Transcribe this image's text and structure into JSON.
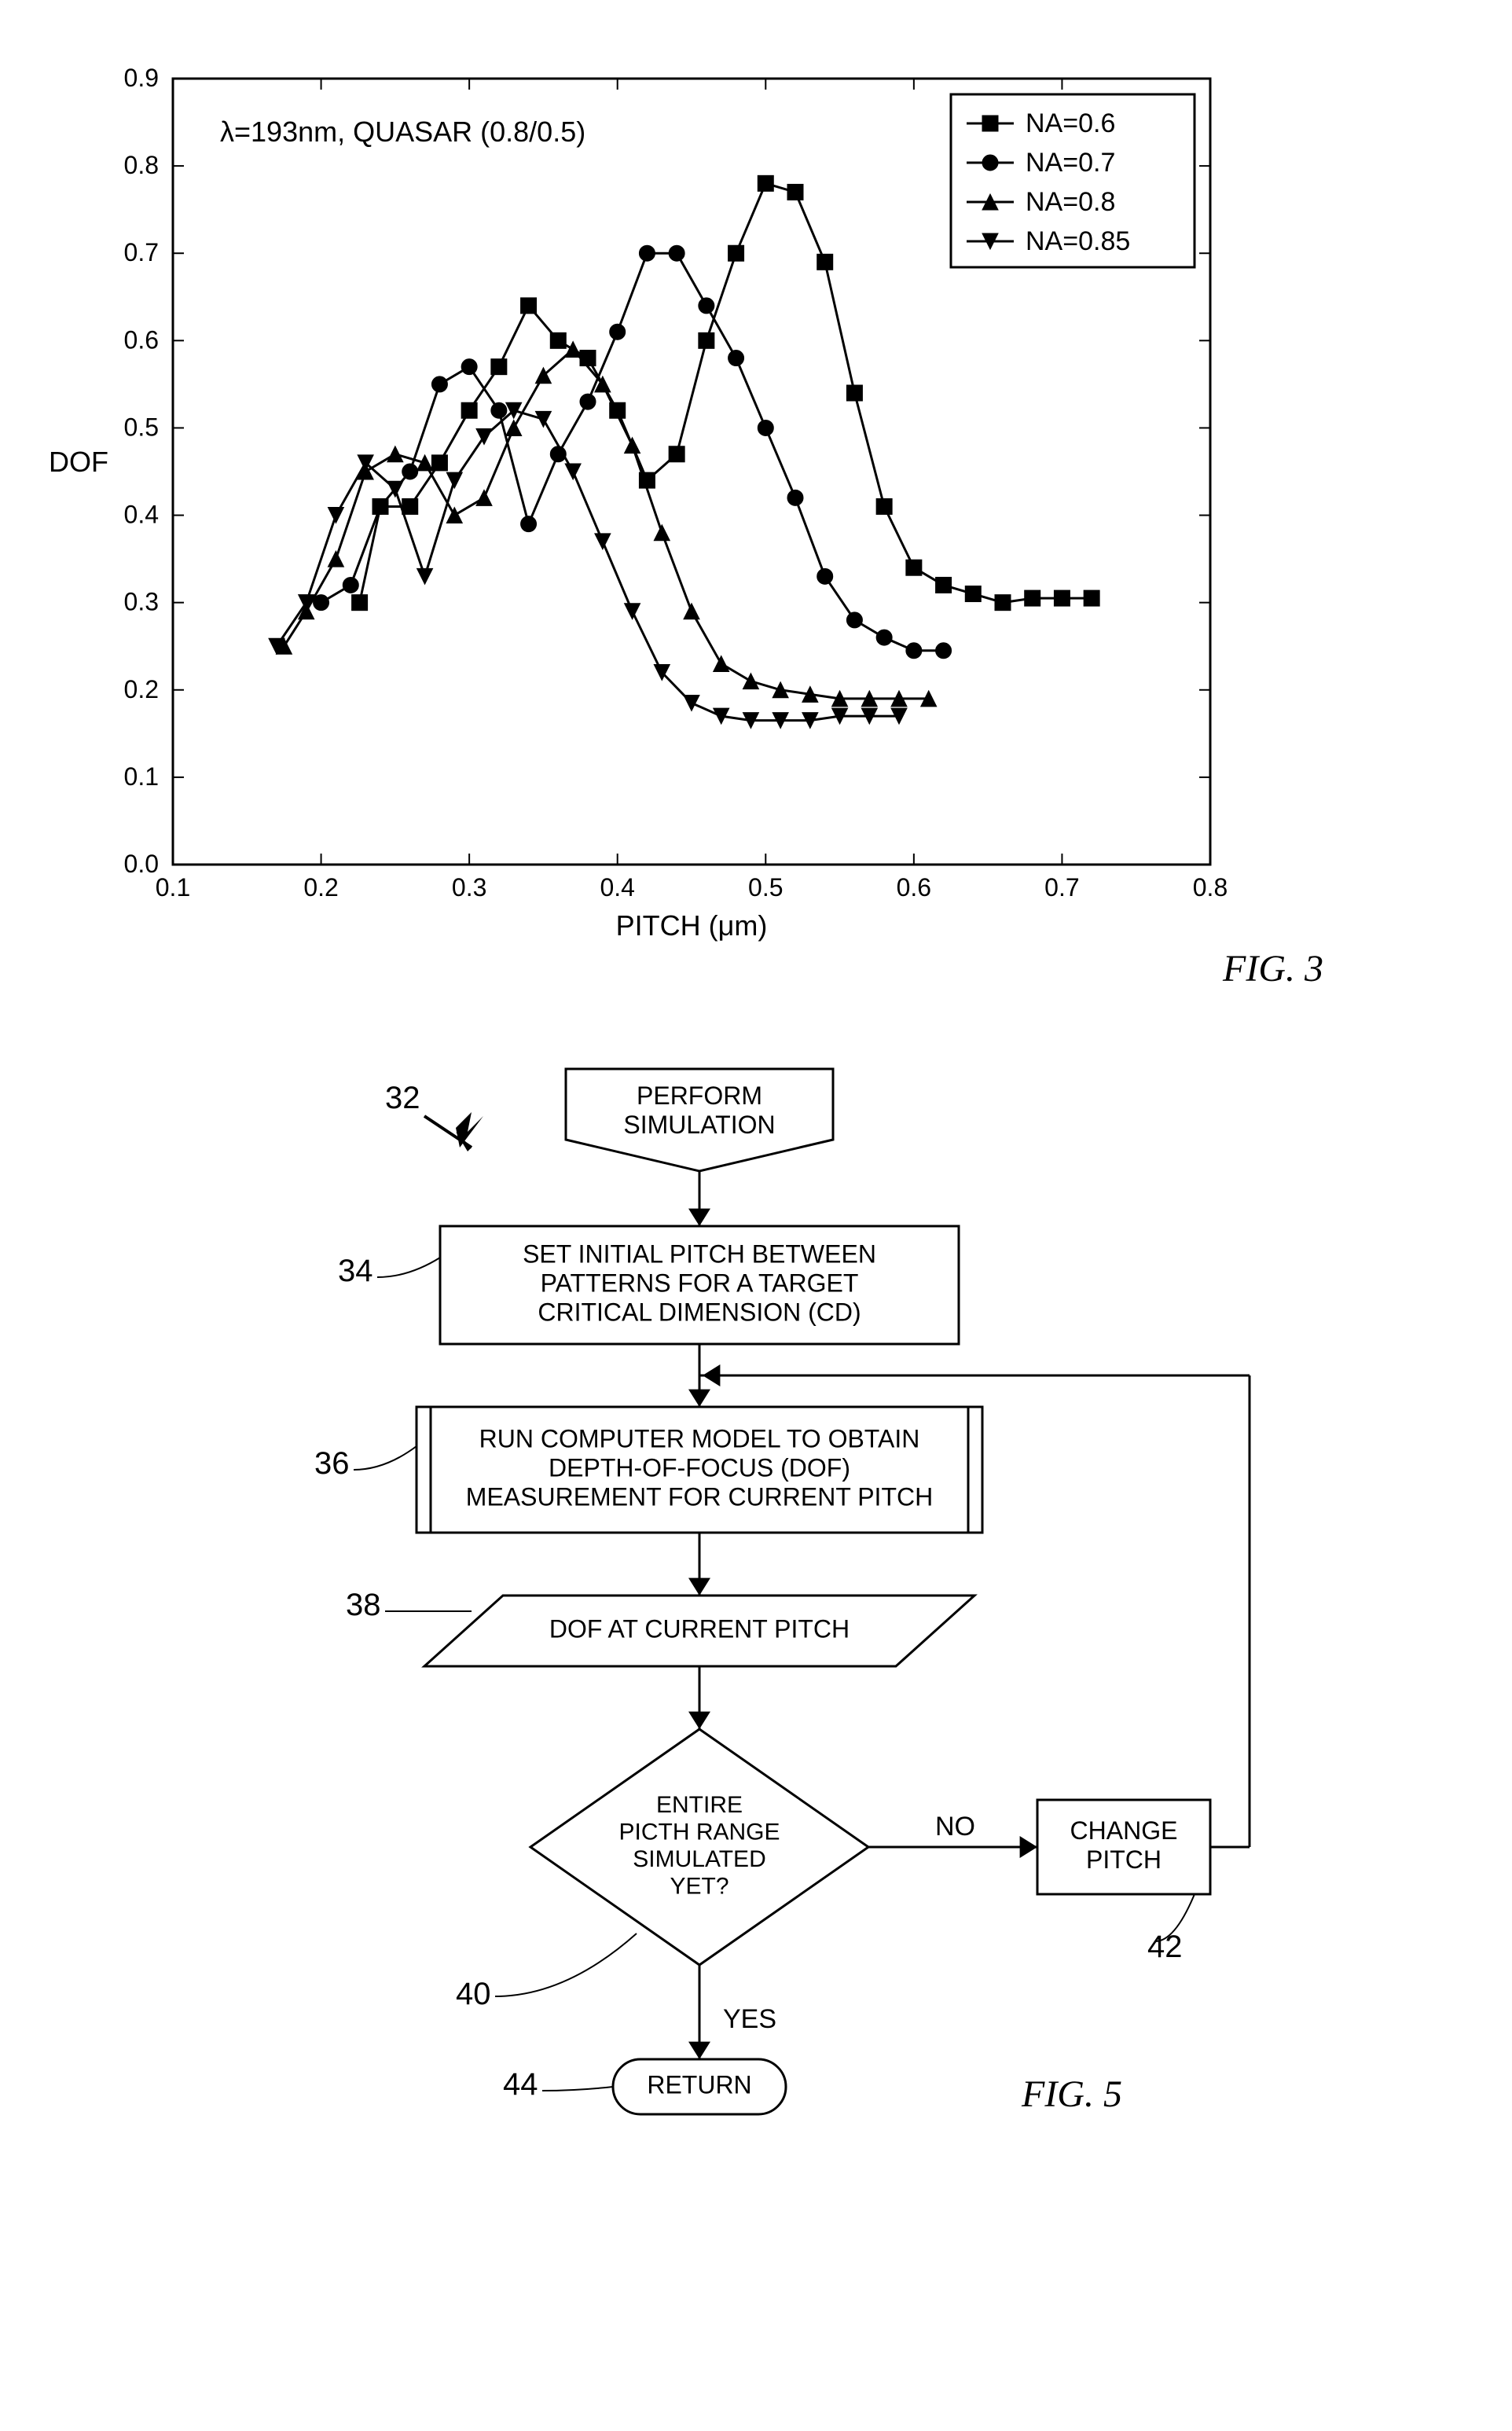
{
  "chart": {
    "type": "line",
    "annotation": "λ=193nm, QUASAR (0.8/0.5)",
    "annotation_fontsize": 36,
    "xlabel": "PITCH (μm)",
    "ylabel": "DOF",
    "label_fontsize": 36,
    "tick_fontsize": 32,
    "xlim": [
      0.1,
      0.8
    ],
    "ylim": [
      0.0,
      0.9
    ],
    "xtick_step": 0.1,
    "ytick_step": 0.1,
    "xticks": [
      "0.1",
      "0.2",
      "0.3",
      "0.4",
      "0.5",
      "0.6",
      "0.7",
      "0.8"
    ],
    "yticks": [
      "0.0",
      "0.1",
      "0.2",
      "0.3",
      "0.4",
      "0.5",
      "0.6",
      "0.7",
      "0.8",
      "0.9"
    ],
    "background_color": "#ffffff",
    "axis_color": "#000000",
    "line_width": 3,
    "marker_size": 10,
    "legend": {
      "items": [
        "NA=0.6",
        "NA=0.7",
        "NA=0.8",
        "NA=0.85"
      ],
      "markers": [
        "square",
        "circle",
        "triangle",
        "invtriangle"
      ],
      "position": "top-right",
      "fontsize": 34,
      "border_color": "#000000",
      "bg_color": "#ffffff"
    },
    "series": [
      {
        "name": "NA=0.6",
        "marker": "square",
        "color": "#000000",
        "fill": "#000000",
        "x": [
          0.226,
          0.24,
          0.26,
          0.28,
          0.3,
          0.32,
          0.34,
          0.36,
          0.38,
          0.4,
          0.42,
          0.44,
          0.46,
          0.48,
          0.5,
          0.52,
          0.54,
          0.56,
          0.58,
          0.6,
          0.62,
          0.64,
          0.66,
          0.68,
          0.7,
          0.72
        ],
        "y": [
          0.3,
          0.41,
          0.41,
          0.46,
          0.52,
          0.57,
          0.64,
          0.6,
          0.58,
          0.52,
          0.44,
          0.47,
          0.6,
          0.7,
          0.78,
          0.77,
          0.69,
          0.54,
          0.41,
          0.34,
          0.32,
          0.31,
          0.3,
          0.305,
          0.305,
          0.305
        ]
      },
      {
        "name": "NA=0.7",
        "marker": "circle",
        "color": "#000000",
        "fill": "#000000",
        "x": [
          0.2,
          0.22,
          0.24,
          0.26,
          0.28,
          0.3,
          0.32,
          0.34,
          0.36,
          0.38,
          0.4,
          0.42,
          0.44,
          0.46,
          0.48,
          0.5,
          0.52,
          0.54,
          0.56,
          0.58,
          0.6,
          0.62
        ],
        "y": [
          0.3,
          0.32,
          0.41,
          0.45,
          0.55,
          0.57,
          0.52,
          0.39,
          0.47,
          0.53,
          0.61,
          0.7,
          0.7,
          0.64,
          0.58,
          0.5,
          0.42,
          0.33,
          0.28,
          0.26,
          0.245,
          0.245
        ]
      },
      {
        "name": "NA=0.8",
        "marker": "triangle",
        "color": "#000000",
        "fill": "#000000",
        "x": [
          0.175,
          0.19,
          0.21,
          0.23,
          0.25,
          0.27,
          0.29,
          0.31,
          0.33,
          0.35,
          0.37,
          0.39,
          0.41,
          0.43,
          0.45,
          0.47,
          0.49,
          0.51,
          0.53,
          0.55,
          0.57,
          0.59,
          0.61
        ],
        "y": [
          0.25,
          0.29,
          0.35,
          0.45,
          0.47,
          0.46,
          0.4,
          0.42,
          0.5,
          0.56,
          0.59,
          0.55,
          0.48,
          0.38,
          0.29,
          0.23,
          0.21,
          0.2,
          0.195,
          0.19,
          0.19,
          0.19,
          0.19
        ]
      },
      {
        "name": "NA=0.85",
        "marker": "invtriangle",
        "color": "#000000",
        "fill": "#000000",
        "x": [
          0.17,
          0.19,
          0.21,
          0.23,
          0.25,
          0.27,
          0.29,
          0.31,
          0.33,
          0.35,
          0.37,
          0.39,
          0.41,
          0.43,
          0.45,
          0.47,
          0.49,
          0.51,
          0.53,
          0.55,
          0.57,
          0.59
        ],
        "y": [
          0.25,
          0.3,
          0.4,
          0.46,
          0.43,
          0.33,
          0.44,
          0.49,
          0.52,
          0.51,
          0.45,
          0.37,
          0.29,
          0.22,
          0.185,
          0.17,
          0.165,
          0.165,
          0.165,
          0.17,
          0.17,
          0.17
        ]
      }
    ],
    "fig_label": "FIG. 3"
  },
  "flowchart": {
    "type": "flowchart",
    "fig_label": "FIG. 5",
    "line_width": 3,
    "bg_color": "#ffffff",
    "border_color": "#000000",
    "text_color": "#000000",
    "nodes": {
      "start": {
        "label": "PERFORM\nSIMULATION",
        "ref": "32"
      },
      "set_pitch": {
        "label": "SET INITIAL PITCH BETWEEN\nPATTERNS FOR A TARGET\nCRITICAL DIMENSION (CD)",
        "ref": "34"
      },
      "run_model": {
        "label": "RUN COMPUTER MODEL TO OBTAIN\nDEPTH-OF-FOCUS (DOF)\nMEASUREMENT FOR CURRENT PITCH",
        "ref": "36"
      },
      "dof_out": {
        "label": "DOF AT CURRENT PITCH",
        "ref": "38"
      },
      "decision": {
        "label": "ENTIRE\nPICTH RANGE\nSIMULATED\nYET?",
        "ref": "40"
      },
      "change": {
        "label": "CHANGE\nPITCH",
        "ref": "42"
      },
      "return": {
        "label": "RETURN",
        "ref": "44"
      }
    },
    "edge_labels": {
      "yes": "YES",
      "no": "NO"
    }
  }
}
